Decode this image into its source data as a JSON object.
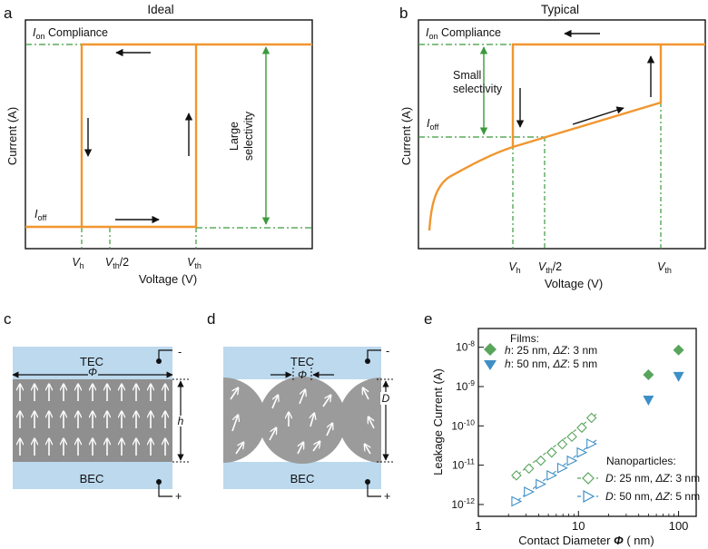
{
  "panel_a": {
    "label": "a",
    "title": "Ideal",
    "ylabel": "Current (A)",
    "xlabel": "Voltage (V)",
    "ion_main": "I",
    "ion_sub": "on",
    "ion_rest": " Compliance",
    "ioff_main": "I",
    "ioff_sub": "off",
    "selectivity_line1": "Large",
    "selectivity_line2": "selectivity",
    "tick_vh_main": "V",
    "tick_vh_sub": "h",
    "tick_vth2_main": "V",
    "tick_vth2_sub": "th",
    "tick_vth2_rest": "/2",
    "tick_vth_main": "V",
    "tick_vth_sub": "th"
  },
  "panel_b": {
    "label": "b",
    "title": "Typical",
    "ylabel": "Current (A)",
    "xlabel": "Voltage (V)",
    "ion_main": "I",
    "ion_sub": "on",
    "ion_rest": " Compliance",
    "ioff_main": "I",
    "ioff_sub": "off",
    "selectivity_line1": "Small",
    "selectivity_line2": "selectivity",
    "tick_vh_main": "V",
    "tick_vh_sub": "h",
    "tick_vth2_main": "V",
    "tick_vth2_sub": "th",
    "tick_vth2_rest": "/2",
    "tick_vth_main": "V",
    "tick_vth_sub": "th"
  },
  "panel_c": {
    "label": "c",
    "tec": "TEC",
    "bec": "BEC",
    "diameter": "Φ",
    "height": "h",
    "minus": "-",
    "plus": "+"
  },
  "panel_d": {
    "label": "d",
    "tec": "TEC",
    "bec": "BEC",
    "diameter": "Φ",
    "height": "D",
    "minus": "-",
    "plus": "+"
  },
  "panel_e": {
    "label": "e",
    "films_title": "Films:",
    "films": [
      {
        "sym": "h",
        "text": ": 25 nm, ",
        "dz": "ΔZ",
        "rest": ": 3 nm"
      },
      {
        "sym": "h",
        "text": ": 50 nm, ",
        "dz": "ΔZ",
        "rest": ": 5 nm"
      }
    ],
    "np_title": "Nanoparticles:",
    "nanoparticles": [
      {
        "sym": "D",
        "text": ": 25 nm, ",
        "dz": "ΔZ",
        "rest": ": 3 nm"
      },
      {
        "sym": "D",
        "text": ": 50 nm, ",
        "dz": "ΔZ",
        "rest": ": 5 nm"
      }
    ],
    "xlabel_prefix": "Contact Diameter ",
    "xlabel_sym": "Φ",
    "xlabel_suffix": " ( nm)",
    "ylabel": "Leakage Current (A)",
    "xticks": [
      "1",
      "10",
      "100"
    ],
    "yticks": [
      {
        "base": "10",
        "exp": "-8"
      },
      {
        "base": "10",
        "exp": "-9"
      },
      {
        "base": "10",
        "exp": "-10"
      },
      {
        "base": "10",
        "exp": "-11"
      },
      {
        "base": "10",
        "exp": "-12"
      }
    ]
  },
  "colors": {
    "orange": "#f0962f",
    "green_dash": "#3a9a3a",
    "film_green": "#58a55c",
    "film_blue": "#3e8fc6",
    "electrode": "#bcd9ee",
    "ferro": "#8f8f8f"
  },
  "chart_data": {
    "type": "scatter",
    "xscale": "log",
    "yscale": "log",
    "xlim": [
      1,
      150
    ],
    "ylim": [
      5e-13,
      3e-08
    ],
    "series": [
      {
        "name": "h: 25 nm, ΔZ: 3 nm",
        "marker": "diamond",
        "x": [
          50,
          100
        ],
        "y": [
          2e-09,
          8.5e-09
        ]
      },
      {
        "name": "h: 50 nm, ΔZ: 5 nm",
        "marker": "triangle-down",
        "x": [
          50,
          100
        ],
        "y": [
          4.5e-10,
          1.8e-09
        ]
      },
      {
        "name": "D: 25 nm, ΔZ: 3 nm",
        "marker": "diamond-open",
        "x": [
          2.4,
          3.2,
          4.2,
          5.4,
          6.9,
          8.6,
          10.8,
          13.5
        ],
        "y": [
          5.5e-12,
          8.2e-12,
          1.3e-11,
          2.1e-11,
          3.4e-11,
          5.3e-11,
          9e-11,
          1.6e-10
        ]
      },
      {
        "name": "D: 50 nm, ΔZ: 5 nm",
        "marker": "triangle-right-open",
        "x": [
          2.4,
          3.2,
          4.2,
          5.4,
          6.9,
          8.6,
          10.8,
          13.5
        ],
        "y": [
          1.2e-12,
          2.1e-12,
          3.3e-12,
          5.5e-12,
          8.5e-12,
          1.3e-11,
          2.1e-11,
          3.5e-11
        ]
      }
    ]
  }
}
